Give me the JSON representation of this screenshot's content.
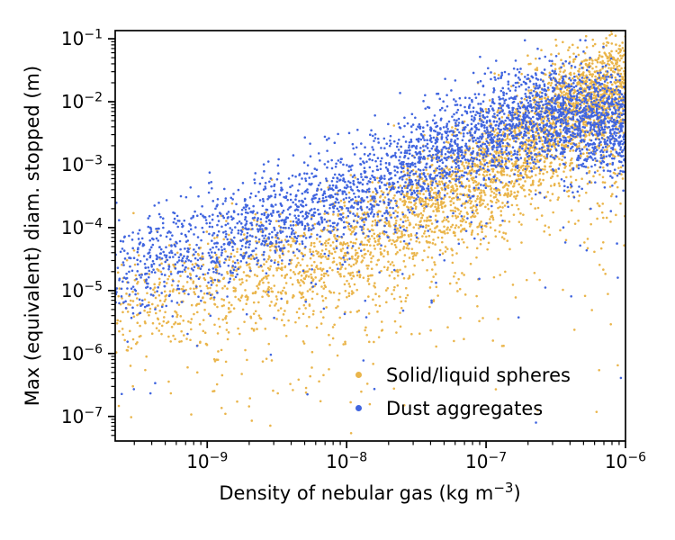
{
  "figure": {
    "background": "#ffffff",
    "text_color": "#000000"
  },
  "chart_data": {
    "type": "scatter",
    "title": "",
    "xlabel": "Density of nebular gas (kg m⁻³)",
    "xlabel_parts": {
      "prefix": "Density of nebular gas (kg m",
      "sup": "−3",
      "suffix": ")"
    },
    "ylabel": "Max (equivalent) diam. stopped (m)",
    "xscale": "log",
    "yscale": "log",
    "grid": false,
    "xlim_log10": [
      -9.66,
      -6.0
    ],
    "ylim_log10": [
      -7.39,
      -0.87
    ],
    "x_ticks": [
      {
        "log10": -9,
        "base": "10",
        "sup": "−9"
      },
      {
        "log10": -8,
        "base": "10",
        "sup": "−8"
      },
      {
        "log10": -7,
        "base": "10",
        "sup": "−7"
      },
      {
        "log10": -6,
        "base": "10",
        "sup": "−6"
      }
    ],
    "y_ticks": [
      {
        "log10": -1,
        "base": "10",
        "sup": "−1"
      },
      {
        "log10": -2,
        "base": "10",
        "sup": "−2"
      },
      {
        "log10": -3,
        "base": "10",
        "sup": "−3"
      },
      {
        "log10": -4,
        "base": "10",
        "sup": "−4"
      },
      {
        "log10": -5,
        "base": "10",
        "sup": "−5"
      },
      {
        "log10": -6,
        "base": "10",
        "sup": "−6"
      },
      {
        "log10": -7,
        "base": "10",
        "sup": "−7"
      }
    ],
    "legend_position": "lower-right-inside",
    "legend_frame": false,
    "marker_diameter_px": 2.6,
    "legend_marker_diameter_px": 7,
    "series": [
      {
        "name": "Solid/liquid spheres",
        "color": "#EAB54B",
        "n_points": 3800,
        "seed": 101,
        "x_density_skew": 1.9,
        "trend_log10": {
          "x": [
            -9.7,
            -9.0,
            -8.0,
            -7.0,
            -6.4,
            -6.0
          ],
          "y": [
            -5.3,
            -4.92,
            -4.35,
            -3.1,
            -2.05,
            -1.72
          ]
        },
        "scatter_sigma_dex": 0.45,
        "down_tail_prob": 0.2,
        "down_tail_scale_dex": 0.85
      },
      {
        "name": "Dust aggregates",
        "color": "#4065DF",
        "n_points": 3500,
        "seed": 202,
        "x_density_skew": 1.5,
        "trend_log10": {
          "x": [
            -9.7,
            -9.0,
            -8.0,
            -7.0,
            -6.6,
            -6.0
          ],
          "y": [
            -4.7,
            -4.25,
            -3.5,
            -2.45,
            -2.18,
            -2.35
          ]
        },
        "scatter_sigma_dex": 0.4,
        "down_tail_prob": 0.1,
        "down_tail_scale_dex": 0.7
      }
    ]
  }
}
